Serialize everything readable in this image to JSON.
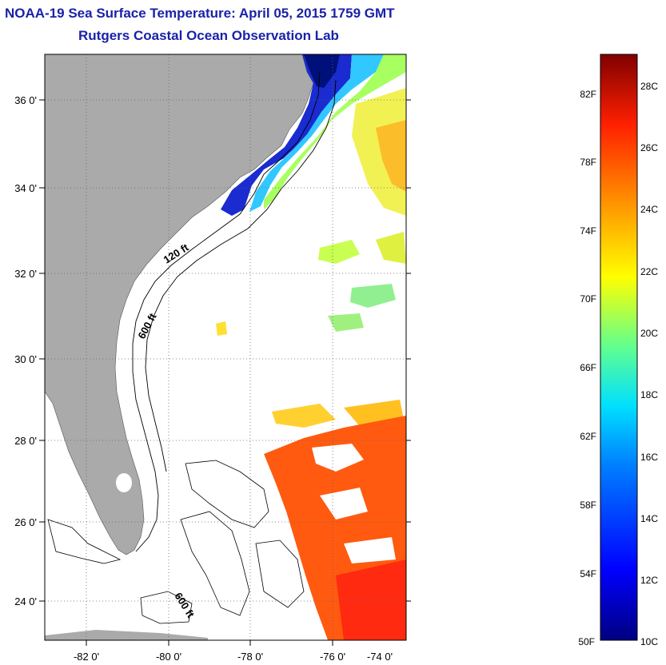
{
  "header": {
    "title": "NOAA-19 Sea Surface Temperature:  April 05, 2015 1759 GMT",
    "subtitle": "Rutgers Coastal Ocean Observation Lab"
  },
  "map": {
    "lon_labels": [
      "-82 0'",
      "-80 0'",
      "-78 0'",
      "-76 0'",
      "-74 0'"
    ],
    "lat_labels": [
      "36 0'",
      "34 0'",
      "32 0'",
      "30 0'",
      "28 0'",
      "26 0'",
      "24 0'"
    ],
    "contour_labels": [
      "120 ft",
      "600 ft",
      "600 ft"
    ],
    "colors": {
      "land": "#aaaaaa",
      "ocean_nodata": "#ffffff",
      "grid": "#666666"
    }
  },
  "colorbar": {
    "fahrenheit_labels": [
      "82F",
      "78F",
      "74F",
      "70F",
      "66F",
      "62F",
      "58F",
      "54F",
      "50F"
    ],
    "celsius_labels": [
      "28C",
      "26C",
      "24C",
      "22C",
      "20C",
      "18C",
      "16C",
      "14C",
      "12C",
      "10C"
    ],
    "range_c": [
      10,
      29
    ]
  }
}
